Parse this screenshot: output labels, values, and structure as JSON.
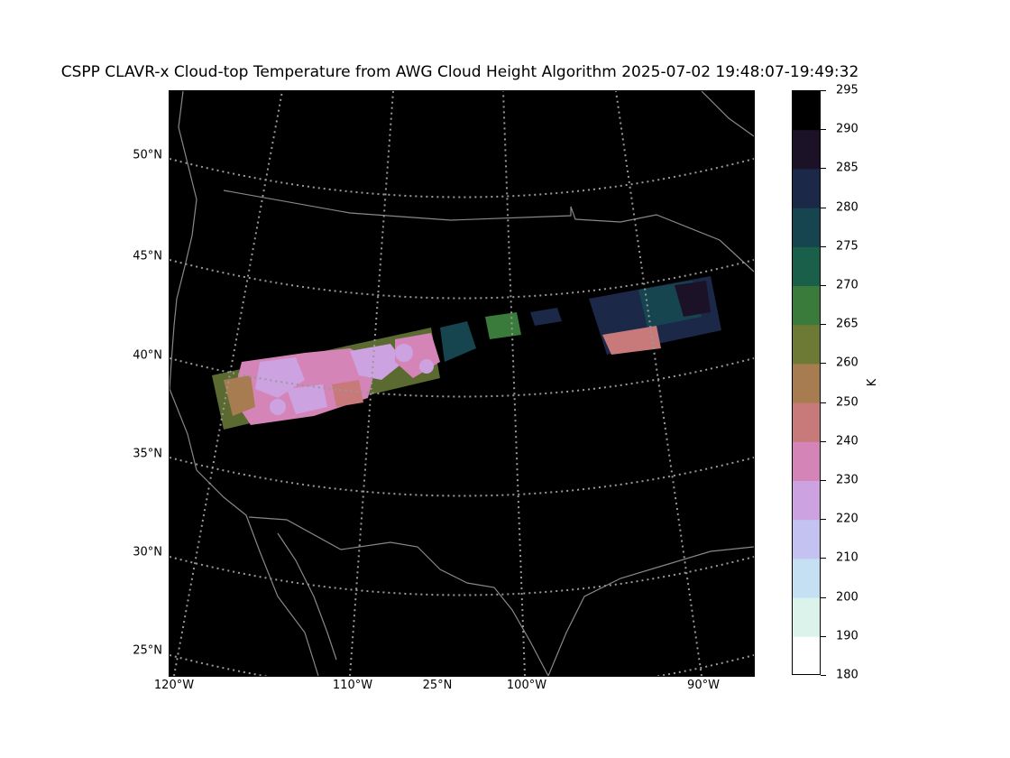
{
  "title": "CSPP CLAVR-x Cloud-top Temperature from AWG Cloud Height Algorithm 2025-07-02 19:48:07-19:49:32",
  "map": {
    "lat_labels": [
      "50°N",
      "45°N",
      "40°N",
      "35°N",
      "30°N",
      "25°N"
    ],
    "lon_labels": [
      "120°W",
      "110°W",
      "25°N",
      "100°W",
      "90°W"
    ],
    "background": "#000000",
    "boundary_color": "#888888",
    "grid_color": "#999999",
    "grid_style": "dotted"
  },
  "colorbar": {
    "unit": "K",
    "tick_labels": [
      "295",
      "290",
      "285",
      "280",
      "275",
      "270",
      "265",
      "260",
      "250",
      "240",
      "230",
      "220",
      "210",
      "200",
      "190",
      "180"
    ],
    "colors": [
      "#000000",
      "#1c1228",
      "#1c2848",
      "#16444f",
      "#1a5f4a",
      "#3a7a3a",
      "#6d7a36",
      "#a77c50",
      "#c87a7a",
      "#d584b8",
      "#cca2e0",
      "#c4c2f0",
      "#c4e0f2",
      "#dcf3ec",
      "#ffffff"
    ]
  }
}
